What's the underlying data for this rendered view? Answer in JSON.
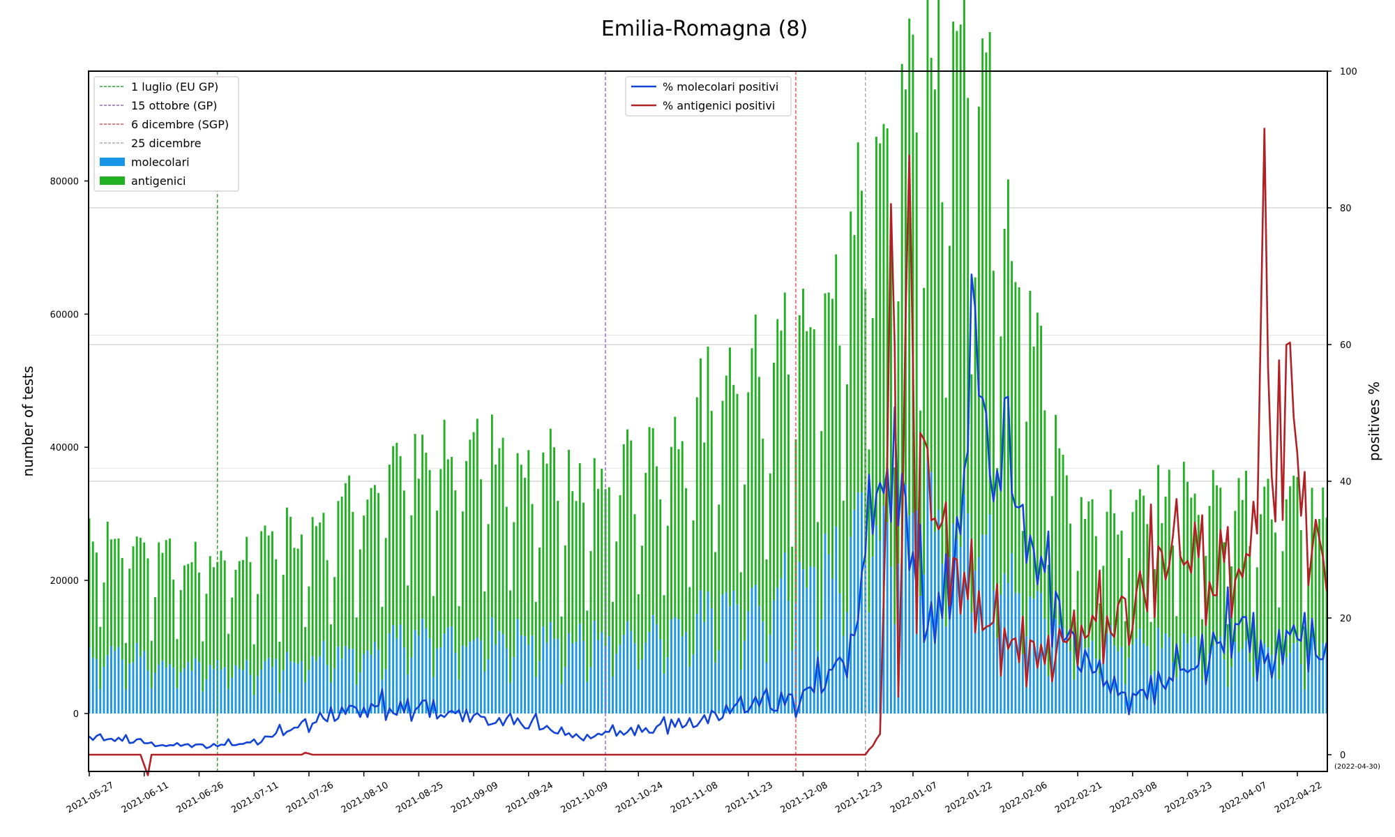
{
  "chart_data": {
    "type": "bar",
    "title": "Emilia-Romagna (8)",
    "ylabel_left": "number of tests",
    "ylabel_right": "positives %",
    "date_range": [
      "2021-05-27",
      "2022-04-30"
    ],
    "end_note": "(2022-04-30)",
    "xticks": [
      "2021-05-27",
      "2021-06-11",
      "2021-06-26",
      "2021-07-11",
      "2021-07-26",
      "2021-08-10",
      "2021-08-25",
      "2021-09-09",
      "2021-09-24",
      "2021-10-09",
      "2021-10-24",
      "2021-11-08",
      "2021-11-23",
      "2021-12-08",
      "2021-12-23",
      "2022-01-07",
      "2022-01-22",
      "2022-02-06",
      "2022-02-21",
      "2022-03-08",
      "2022-03-23",
      "2022-04-07",
      "2022-04-22"
    ],
    "yticks_left": [
      "0",
      "20000",
      "40000",
      "60000",
      "80000"
    ],
    "yticks_right": [
      "0",
      "20",
      "40",
      "60",
      "80",
      "100"
    ],
    "ylim_left": [
      -8700,
      96500
    ],
    "ylim_right": [
      0,
      100
    ],
    "vlines": [
      {
        "date": "2021-07-01",
        "label": "1 luglio (EU GP)",
        "color": "#2ca02c"
      },
      {
        "date": "2021-10-15",
        "label": "15 ottobre (GP)",
        "color": "#9467bd"
      },
      {
        "date": "2021-12-06",
        "label": "6 dicembre (SGP)",
        "color": "#e0505a"
      },
      {
        "date": "2021-12-25",
        "label": "25 dicembre",
        "color": "#aaaaaa"
      }
    ],
    "series": [
      {
        "name": "molecolari",
        "type": "bar",
        "color": "#1a96e8",
        "keypoints": [
          [
            "2021-05-27",
            10000
          ],
          [
            "2021-06-15",
            8500
          ],
          [
            "2021-07-05",
            7000
          ],
          [
            "2021-08-01",
            10000
          ],
          [
            "2021-08-25",
            12000
          ],
          [
            "2021-09-15",
            12500
          ],
          [
            "2021-10-09",
            11500
          ],
          [
            "2021-11-01",
            13500
          ],
          [
            "2021-11-20",
            18000
          ],
          [
            "2021-12-08",
            22000
          ],
          [
            "2021-12-20",
            27000
          ],
          [
            "2022-01-01",
            31000
          ],
          [
            "2022-01-10",
            35000
          ],
          [
            "2022-01-22",
            30000
          ],
          [
            "2022-02-06",
            18000
          ],
          [
            "2022-02-21",
            12000
          ],
          [
            "2022-03-08",
            11000
          ],
          [
            "2022-04-22",
            10000
          ]
        ]
      },
      {
        "name": "antigenici",
        "type": "bar",
        "color": "#21b021",
        "keypoints": [
          [
            "2021-05-27",
            19000
          ],
          [
            "2021-06-15",
            17000
          ],
          [
            "2021-07-05",
            16500
          ],
          [
            "2021-08-01",
            22000
          ],
          [
            "2021-08-25",
            27000
          ],
          [
            "2021-09-15",
            30000
          ],
          [
            "2021-10-09",
            23000
          ],
          [
            "2021-11-01",
            28000
          ],
          [
            "2021-11-20",
            35000
          ],
          [
            "2021-12-08",
            38000
          ],
          [
            "2021-12-20",
            45000
          ],
          [
            "2022-01-01",
            58000
          ],
          [
            "2022-01-10",
            72000
          ],
          [
            "2022-01-22",
            78000
          ],
          [
            "2022-02-06",
            45000
          ],
          [
            "2022-02-21",
            22000
          ],
          [
            "2022-03-08",
            19000
          ],
          [
            "2022-03-23",
            24000
          ],
          [
            "2022-04-22",
            22000
          ]
        ]
      },
      {
        "name": "% molecolari positivi",
        "type": "line",
        "color": "#1143d8",
        "keypoints": [
          [
            "2021-05-27",
            2.5
          ],
          [
            "2021-06-10",
            2.0
          ],
          [
            "2021-06-12",
            1.5
          ],
          [
            "2021-06-26",
            1.3
          ],
          [
            "2021-07-11",
            1.8
          ],
          [
            "2021-07-26",
            5.0
          ],
          [
            "2021-08-10",
            6.5
          ],
          [
            "2021-08-25",
            7.0
          ],
          [
            "2021-09-09",
            5.5
          ],
          [
            "2021-09-24",
            4.5
          ],
          [
            "2021-10-09",
            2.5
          ],
          [
            "2021-10-24",
            3.5
          ],
          [
            "2021-11-08",
            5.0
          ],
          [
            "2021-11-23",
            7.0
          ],
          [
            "2021-12-08",
            8.5
          ],
          [
            "2021-12-20",
            13.0
          ],
          [
            "2021-12-30",
            45.0
          ],
          [
            "2022-01-05",
            34.0
          ],
          [
            "2022-01-13",
            18.0
          ],
          [
            "2022-01-22",
            40.0
          ],
          [
            "2022-01-24",
            70.0
          ],
          [
            "2022-01-28",
            35.0
          ],
          [
            "2022-02-02",
            48.0
          ],
          [
            "2022-02-06",
            32.0
          ],
          [
            "2022-02-14",
            23.0
          ],
          [
            "2022-02-21",
            14.0
          ],
          [
            "2022-03-08",
            8.0
          ],
          [
            "2022-03-23",
            14.0
          ],
          [
            "2022-04-07",
            18.0
          ],
          [
            "2022-04-15",
            12.0
          ],
          [
            "2022-04-22",
            20.0
          ],
          [
            "2022-04-30",
            15.0
          ]
        ]
      },
      {
        "name": "% antigenici positivi",
        "type": "line",
        "color": "#b12024",
        "keypoints": [
          [
            "2021-05-27",
            0.0
          ],
          [
            "2021-06-10",
            0.0
          ],
          [
            "2021-06-12",
            -3.0
          ],
          [
            "2021-06-13",
            0.0
          ],
          [
            "2021-07-24",
            0.0
          ],
          [
            "2021-07-25",
            0.3
          ],
          [
            "2021-07-27",
            0.0
          ],
          [
            "2021-12-25",
            0.0
          ],
          [
            "2021-12-29",
            3.0
          ],
          [
            "2022-01-01",
            73.0
          ],
          [
            "2022-01-03",
            10.0
          ],
          [
            "2022-01-06",
            92.0
          ],
          [
            "2022-01-08",
            20.0
          ],
          [
            "2022-01-10",
            50.0
          ],
          [
            "2022-01-14",
            30.0
          ],
          [
            "2022-01-20",
            25.0
          ],
          [
            "2022-01-24",
            22.0
          ],
          [
            "2022-01-28",
            18.0
          ],
          [
            "2022-02-06",
            15.0
          ],
          [
            "2022-02-21",
            16.0
          ],
          [
            "2022-03-08",
            22.0
          ],
          [
            "2022-03-20",
            32.0
          ],
          [
            "2022-03-30",
            28.0
          ],
          [
            "2022-04-10",
            28.0
          ],
          [
            "2022-04-13",
            85.0
          ],
          [
            "2022-04-16",
            30.0
          ],
          [
            "2022-04-20",
            68.0
          ],
          [
            "2022-04-23",
            40.0
          ],
          [
            "2022-04-30",
            22.0
          ]
        ]
      }
    ],
    "legend_left_position": "top-left",
    "legend_right_position": "top-center",
    "grid": "horizontal"
  }
}
